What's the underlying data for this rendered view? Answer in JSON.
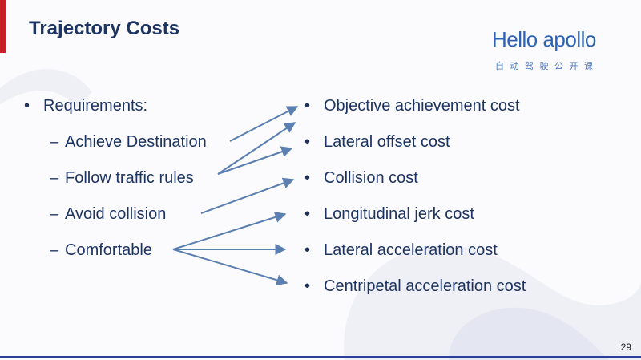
{
  "slide": {
    "title": "Trajectory Costs",
    "page_number": "29"
  },
  "logo": {
    "wordmark": "Hello apollo",
    "subtitle": "自动驾驶公开课"
  },
  "left_list": {
    "bullet_glyph": "•",
    "dash_glyph": "–",
    "heading": "Requirements:",
    "items": [
      "Achieve Destination",
      "Follow traffic rules",
      "Avoid collision",
      "Comfortable"
    ]
  },
  "right_list": {
    "bullet_glyph": "•",
    "items": [
      "Objective achievement cost",
      "Lateral offset cost",
      "Collision cost",
      "Longitudinal jerk cost",
      "Lateral acceleration cost",
      "Centripetal acceleration cost"
    ]
  },
  "colors": {
    "title": "#1d3461",
    "text": "#1d3461",
    "arrow": "#5a7fb0",
    "accent_red": "#c8202a",
    "footer": "#2e3e9c"
  }
}
